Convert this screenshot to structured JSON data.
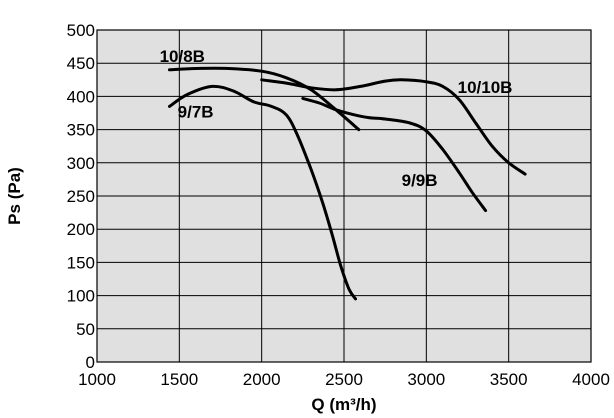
{
  "chart_data": {
    "type": "line",
    "xlabel": "Q (m³/h)",
    "ylabel": "Ps (Pa)",
    "xlim": [
      1000,
      4000
    ],
    "ylim": [
      0,
      500
    ],
    "x_ticks": [
      "1000",
      "1500",
      "2000",
      "2500",
      "3000",
      "3500",
      "4000"
    ],
    "y_ticks": [
      "0",
      "50",
      "100",
      "150",
      "200",
      "250",
      "300",
      "350",
      "400",
      "450",
      "500"
    ],
    "grid": true,
    "plot_background": "#e0e0e0",
    "line_color": "#000000",
    "series": [
      {
        "name": "10/8B",
        "x": [
          1440,
          1600,
          1800,
          2000,
          2150,
          2300,
          2450,
          2590
        ],
        "y": [
          440,
          442,
          442,
          438,
          428,
          410,
          380,
          350
        ]
      },
      {
        "name": "9/7B",
        "x": [
          1440,
          1550,
          1700,
          1830,
          1950,
          2060,
          2150,
          2220,
          2300,
          2370,
          2430,
          2480,
          2530,
          2570
        ],
        "y": [
          385,
          403,
          415,
          408,
          392,
          385,
          372,
          340,
          290,
          240,
          190,
          145,
          110,
          95
        ]
      },
      {
        "name": "10/10B",
        "x": [
          2000,
          2150,
          2300,
          2450,
          2600,
          2750,
          2850,
          3000,
          3100,
          3200,
          3300,
          3400,
          3500,
          3600
        ],
        "y": [
          425,
          420,
          413,
          410,
          415,
          423,
          425,
          422,
          415,
          395,
          360,
          325,
          300,
          283
        ]
      },
      {
        "name": "9/9B",
        "x": [
          2250,
          2350,
          2450,
          2550,
          2650,
          2750,
          2900,
          3000,
          3100,
          3200,
          3280,
          3360
        ],
        "y": [
          397,
          390,
          380,
          373,
          368,
          366,
          360,
          348,
          320,
          285,
          255,
          228
        ]
      }
    ],
    "labels": [
      {
        "text": "10/8B",
        "x": 1380,
        "y": 452
      },
      {
        "text": "9/7B",
        "x": 1490,
        "y": 368
      },
      {
        "text": "10/10B",
        "x": 3190,
        "y": 405
      },
      {
        "text": "9/9B",
        "x": 2850,
        "y": 265
      }
    ]
  }
}
